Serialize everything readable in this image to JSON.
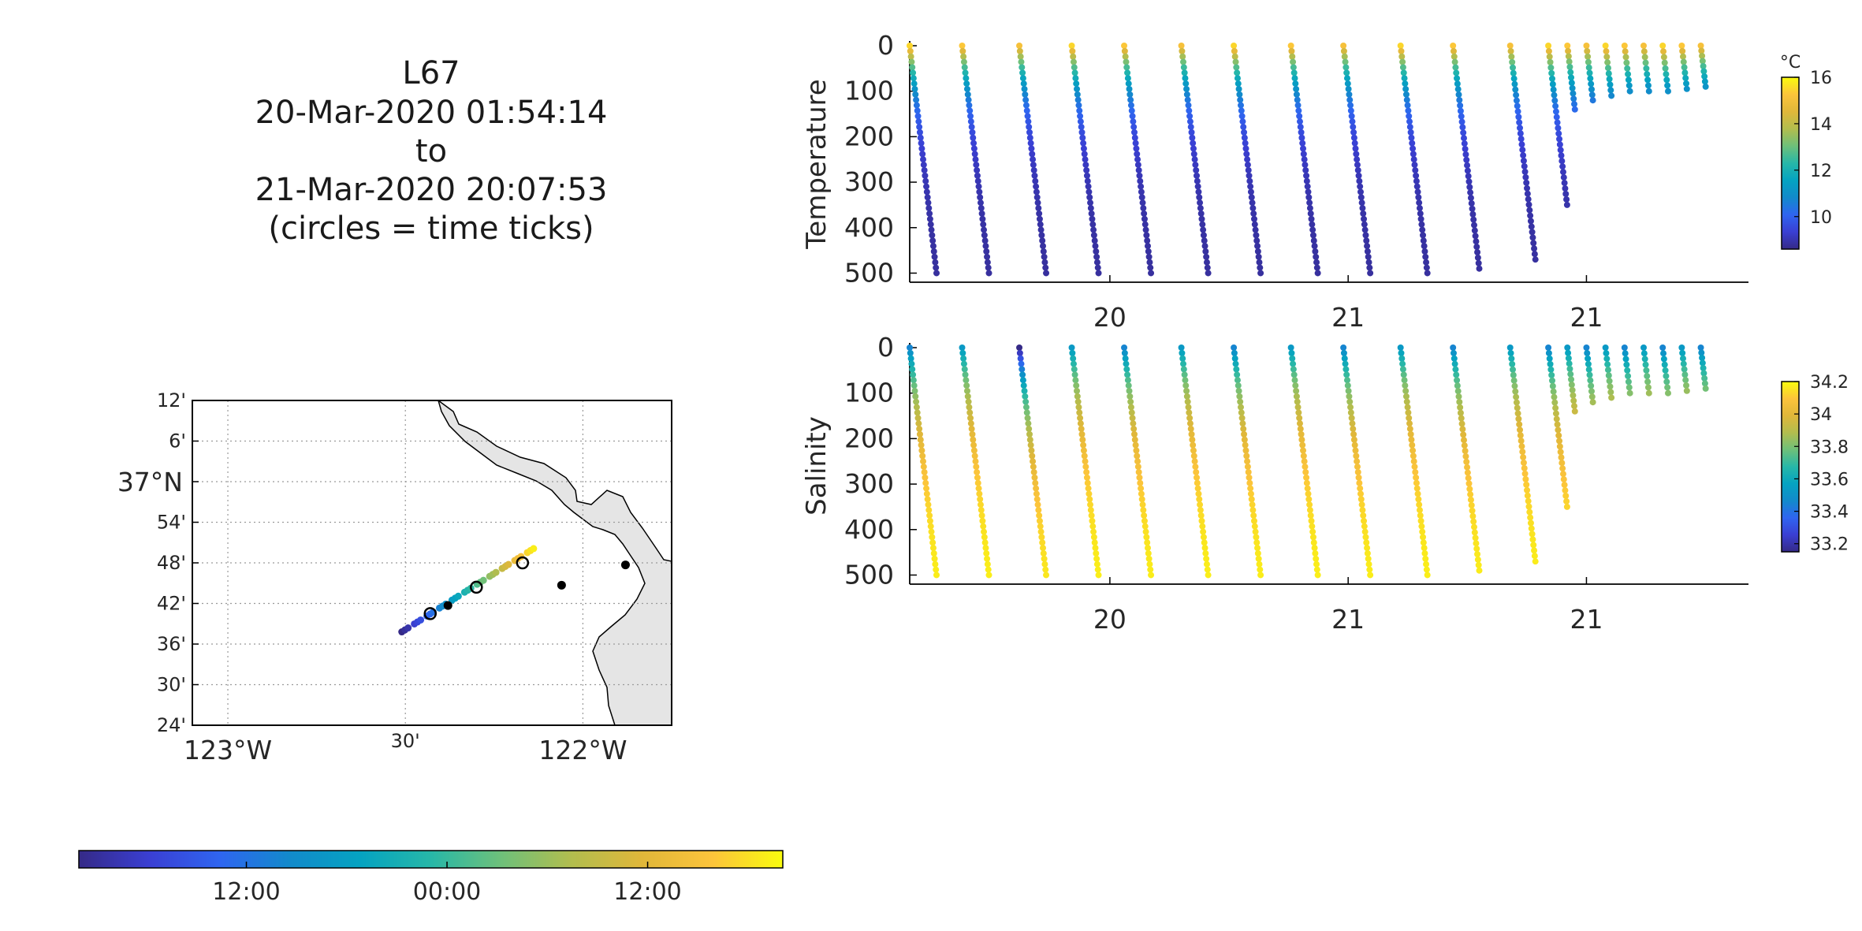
{
  "title": {
    "lines": [
      "L67",
      "20-Mar-2020 01:54:14",
      "to",
      "21-Mar-2020 20:07:53",
      "(circles = time ticks)"
    ]
  },
  "colors": {
    "parula": [
      "#352a87",
      "#3a3fd3",
      "#2f65f0",
      "#128acb",
      "#05a3c1",
      "#27b7a8",
      "#6ec07a",
      "#b2bd4e",
      "#e0b73a",
      "#fcc43b",
      "#f9fb0e"
    ],
    "land": "#e5e5e5",
    "grid": "#bdbdbd"
  },
  "chart_data": [
    {
      "type": "map",
      "name": "track-map",
      "lat_labels": [
        "12'",
        "6'",
        "37°N",
        "54'",
        "48'",
        "42'",
        "36'",
        "30'",
        "24'"
      ],
      "lat_values": [
        37.2,
        37.1,
        37.0,
        36.9,
        36.8,
        36.7,
        36.6,
        36.5,
        36.4
      ],
      "lon_labels": [
        "123°W",
        "30'",
        "122°W"
      ],
      "lon_values": [
        -123.0,
        -122.5,
        -122.0
      ],
      "xlim": [
        -123.1,
        -121.75
      ],
      "ylim": [
        36.4,
        37.2
      ],
      "track_start": [
        -122.51,
        36.63
      ],
      "track_end": [
        -122.13,
        36.84
      ],
      "time_tick_circles": [
        [
          -122.43,
          36.675
        ],
        [
          -122.3,
          36.74
        ],
        [
          -122.17,
          36.8
        ]
      ],
      "stations": [
        [
          -122.38,
          36.695
        ],
        [
          -122.06,
          36.745
        ],
        [
          -121.88,
          36.795
        ]
      ]
    },
    {
      "type": "scatter",
      "name": "temperature-sections",
      "ylabel": "Temperature",
      "yticks": [
        0,
        100,
        200,
        300,
        400,
        500
      ],
      "xtick_labels": [
        "20",
        "21",
        "21"
      ],
      "xtick_values": [
        20.0,
        20.5,
        21.0
      ],
      "xlim": [
        19.58,
        21.34
      ],
      "ylim": [
        0,
        520
      ],
      "colorbar": {
        "label": "°C",
        "ticks": [
          10,
          12,
          14,
          16
        ],
        "range": [
          8.6,
          16
        ]
      },
      "profiles_x_start": [
        19.58,
        19.69,
        19.81,
        19.92,
        20.03,
        20.15,
        20.26,
        20.38,
        20.49,
        20.61,
        20.72,
        20.84,
        20.92,
        20.96,
        21.0,
        21.04,
        21.08,
        21.12,
        21.16,
        21.2,
        21.24
      ],
      "profiles_max_depth": [
        500,
        500,
        500,
        500,
        500,
        500,
        500,
        500,
        500,
        500,
        490,
        470,
        350,
        140,
        120,
        110,
        100,
        100,
        100,
        95,
        90
      ],
      "surface_value": 15.5,
      "deep_value": 8.8
    },
    {
      "type": "scatter",
      "name": "salinity-sections",
      "ylabel": "Salinity",
      "yticks": [
        0,
        100,
        200,
        300,
        400,
        500
      ],
      "xtick_labels": [
        "20",
        "21",
        "21"
      ],
      "xtick_values": [
        20.0,
        20.5,
        21.0
      ],
      "xlim": [
        19.58,
        21.34
      ],
      "ylim": [
        0,
        520
      ],
      "colorbar": {
        "ticks": [
          33.2,
          33.4,
          33.6,
          33.8,
          34,
          34.2
        ],
        "range": [
          33.15,
          34.2
        ]
      },
      "profiles_x_start": [
        19.58,
        19.69,
        19.81,
        19.92,
        20.03,
        20.15,
        20.26,
        20.38,
        20.49,
        20.61,
        20.72,
        20.84,
        20.92,
        20.96,
        21.0,
        21.04,
        21.08,
        21.12,
        21.16,
        21.2,
        21.24
      ],
      "profiles_max_depth": [
        500,
        500,
        500,
        500,
        500,
        500,
        500,
        500,
        500,
        500,
        490,
        470,
        350,
        140,
        120,
        110,
        100,
        100,
        100,
        95,
        90
      ],
      "surface_value": 33.45,
      "deep_value": 34.2
    },
    {
      "type": "colorbar",
      "name": "time-colorbar",
      "tick_labels": [
        "12:00",
        "00:00",
        "12:00"
      ],
      "tick_fractions": [
        0.238,
        0.523,
        0.808
      ]
    }
  ]
}
